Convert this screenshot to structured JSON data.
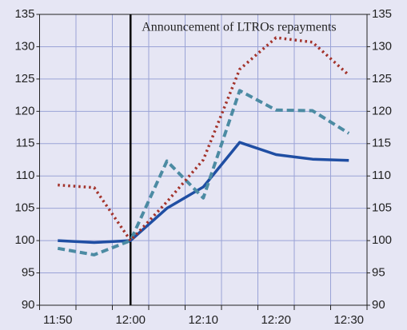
{
  "chart_data": {
    "type": "line",
    "categories": [
      "11:50",
      null,
      "12:00",
      null,
      "12:10",
      null,
      "12:20",
      null,
      "12:30"
    ],
    "series": [
      {
        "color": "#1f4ea3",
        "style": "solid",
        "values": [
          100,
          99.7,
          100,
          105,
          108.3,
          115.2,
          113.3,
          112.6,
          112.4
        ]
      },
      {
        "color": "#4c8ba3",
        "style": "dashed",
        "values": [
          98.8,
          97.8,
          100,
          112.3,
          106.6,
          123.2,
          120.2,
          120.1,
          116.6
        ]
      },
      {
        "color": "#a3332b",
        "style": "dotted",
        "values": [
          108.6,
          108.2,
          100,
          106,
          112.5,
          126.5,
          131.4,
          130.7,
          125.6
        ]
      }
    ],
    "ylim": [
      90,
      135
    ],
    "yticks": [
      90,
      95,
      100,
      105,
      110,
      115,
      120,
      125,
      130,
      135
    ],
    "y2lim": [
      90,
      135
    ],
    "y2ticks": [
      90,
      95,
      100,
      105,
      110,
      115,
      120,
      125,
      130,
      135
    ],
    "grid": true,
    "annotations": [
      {
        "text": "Announcement of LTROs repayments",
        "at": "12:00"
      }
    ]
  }
}
